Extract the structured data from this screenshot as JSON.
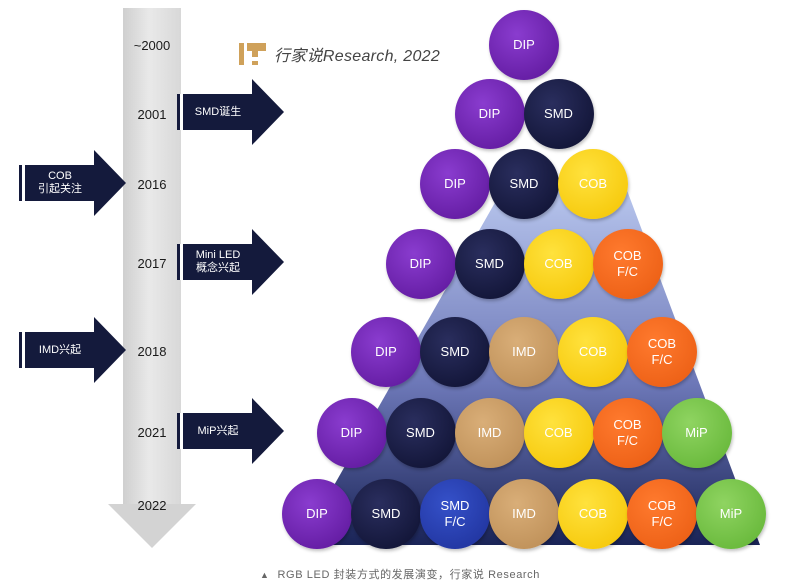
{
  "timeline": {
    "years": [
      "~2000",
      "2001",
      "2016",
      "2017",
      "2018",
      "2021",
      "2022"
    ]
  },
  "events": [
    {
      "label": "SMD诞生",
      "year": "2001",
      "side": "right"
    },
    {
      "label": "COB\n引起关注",
      "year": "2016",
      "side": "left"
    },
    {
      "label": "Mini LED\n概念兴起",
      "year": "2017",
      "side": "right"
    },
    {
      "label": "IMD兴起",
      "year": "2018",
      "side": "left"
    },
    {
      "label": "MiP兴起",
      "year": "2021",
      "side": "right"
    }
  ],
  "brand": {
    "text": "行家说Research, 2022"
  },
  "pyramid": {
    "rows": [
      [
        "DIP"
      ],
      [
        "DIP",
        "SMD"
      ],
      [
        "DIP",
        "SMD",
        "COB"
      ],
      [
        "DIP",
        "SMD",
        "COB",
        "COB\nF/C"
      ],
      [
        "DIP",
        "SMD",
        "IMD",
        "COB",
        "COB\nF/C"
      ],
      [
        "DIP",
        "SMD",
        "IMD",
        "COB",
        "COB\nF/C",
        "MiP"
      ],
      [
        "DIP",
        "SMD",
        "SMD\nF/C",
        "IMD",
        "COB",
        "COB\nF/C",
        "MiP"
      ]
    ]
  },
  "colors": {
    "DIP": "#6a1fb0",
    "SMD": "#141a3c",
    "COB": "#f7cf12",
    "IMD": "#c99a62",
    "COB F/C": "#f06a1e",
    "MiP": "#74c247",
    "SMD F/C": "#2840b0",
    "arrow": "#141a3c",
    "timeline": "#d3d3d3"
  },
  "caption": {
    "marker": "▲",
    "text": "RGB LED 封装方式的发展演变，行家说 Research"
  }
}
